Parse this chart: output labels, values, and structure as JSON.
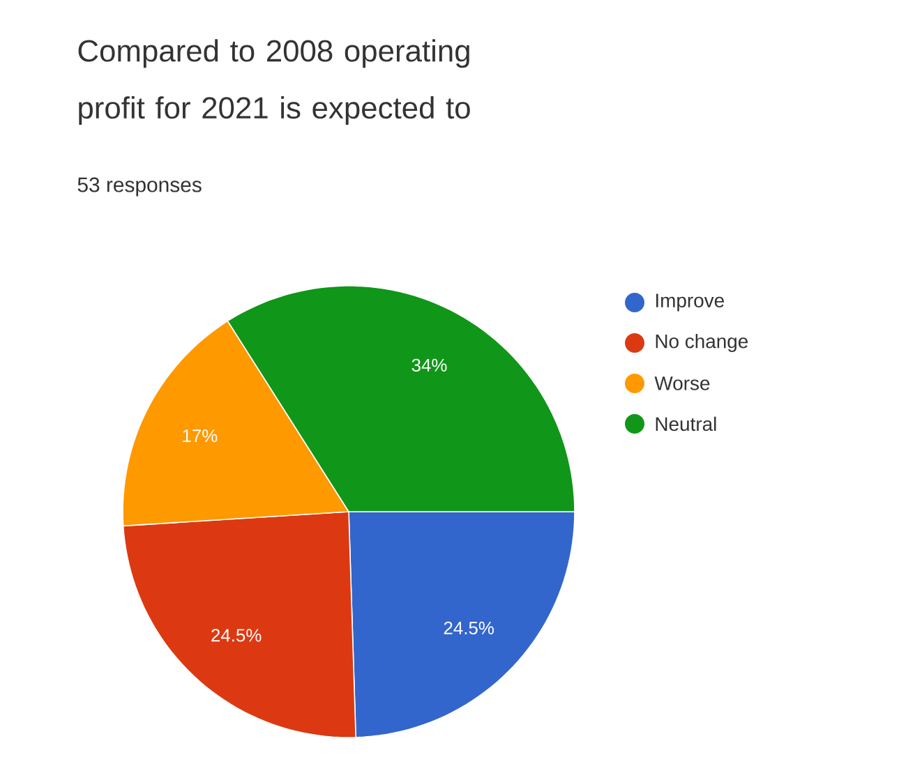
{
  "chart_data": {
    "type": "pie",
    "title": "Compared to 2008 operating profit for 2021 is expected to",
    "subtitle": "53 responses",
    "categories": [
      "Improve",
      "No change",
      "Worse",
      "Neutral"
    ],
    "values": [
      24.5,
      24.5,
      17,
      34
    ],
    "colors": [
      "#3366cc",
      "#dc3912",
      "#ff9900",
      "#109618"
    ],
    "value_labels": [
      "24.5%",
      "24.5%",
      "17%",
      "34%"
    ],
    "legend": "right"
  }
}
